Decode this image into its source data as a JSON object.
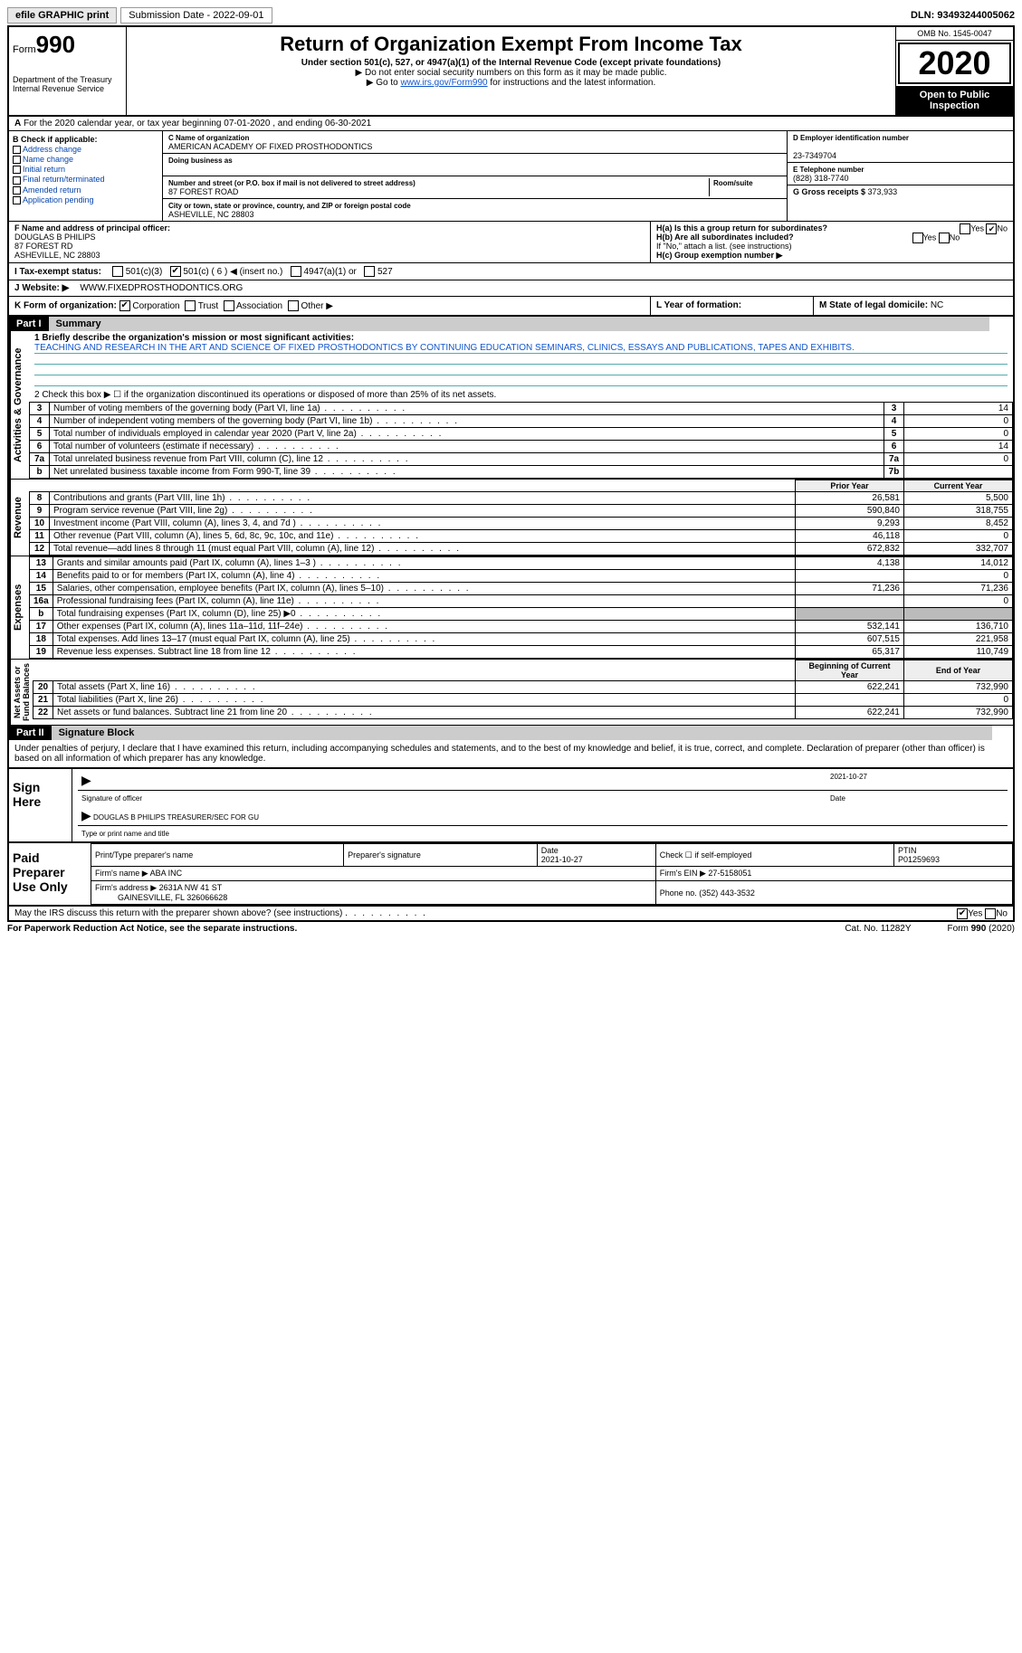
{
  "topbar": {
    "efile": "efile GRAPHIC print",
    "sub_date_label": "Submission Date - 2022-09-01",
    "dln": "DLN: 93493244005062"
  },
  "header": {
    "form_prefix": "Form",
    "form_num": "990",
    "dept": "Department of the Treasury\nInternal Revenue Service",
    "title": "Return of Organization Exempt From Income Tax",
    "subtitle": "Under section 501(c), 527, or 4947(a)(1) of the Internal Revenue Code (except private foundations)",
    "note1": "▶ Do not enter social security numbers on this form as it may be made public.",
    "note2_pre": "▶ Go to ",
    "note2_link": "www.irs.gov/Form990",
    "note2_post": " for instructions and the latest information.",
    "omb": "OMB No. 1545-0047",
    "year": "2020",
    "otp": "Open to Public Inspection"
  },
  "row_a": "For the 2020 calendar year, or tax year beginning 07-01-2020   , and ending 06-30-2021",
  "col_b": {
    "title": "B Check if applicable:",
    "items": [
      "Address change",
      "Name change",
      "Initial return",
      "Final return/terminated",
      "Amended return",
      "Application pending"
    ]
  },
  "col_c": {
    "name_label": "C Name of organization",
    "name": "AMERICAN ACADEMY OF FIXED PROSTHODONTICS",
    "dba_label": "Doing business as",
    "dba": "",
    "addr_label": "Number and street (or P.O. box if mail is not delivered to street address)",
    "room_label": "Room/suite",
    "addr": "87 FOREST ROAD",
    "city_label": "City or town, state or province, country, and ZIP or foreign postal code",
    "city": "ASHEVILLE, NC  28803"
  },
  "col_d": {
    "ein_label": "D Employer identification number",
    "ein": "23-7349704",
    "tel_label": "E Telephone number",
    "tel": "(828) 318-7740",
    "gross_label": "G Gross receipts $ ",
    "gross": "373,933"
  },
  "sec_f": {
    "label": "F  Name and address of principal officer:",
    "name": "DOUGLAS B PHILIPS",
    "addr1": "87 FOREST RD",
    "addr2": "ASHEVILLE, NC  28803"
  },
  "sec_h": {
    "ha_label": "H(a)  Is this a group return for subordinates?",
    "hb_label": "H(b)  Are all subordinates included?",
    "hb_note": "If \"No,\" attach a list. (see instructions)",
    "hc_label": "H(c)  Group exemption number ▶",
    "yes": "Yes",
    "no": "No"
  },
  "status": {
    "i_label": "I  Tax-exempt status:",
    "opts": [
      "501(c)(3)",
      "501(c) ( 6 ) ◀ (insert no.)",
      "4947(a)(1) or",
      "527"
    ],
    "j_label": "J  Website: ▶",
    "j_val": "WWW.FIXEDPROSTHODONTICS.ORG"
  },
  "kl": {
    "k_label": "K Form of organization:",
    "k_opts": [
      "Corporation",
      "Trust",
      "Association",
      "Other ▶"
    ],
    "l_label": "L Year of formation:",
    "l_val": "",
    "m_label": "M State of legal domicile: ",
    "m_val": "NC"
  },
  "part1": {
    "num": "Part I",
    "title": "Summary"
  },
  "summary": {
    "q1_label": "1  Briefly describe the organization's mission or most significant activities:",
    "q1_text": "TEACHING AND RESEARCH IN THE ART AND SCIENCE OF FIXED PROSTHODONTICS BY CONTINUING EDUCATION SEMINARS, CLINICS, ESSAYS AND PUBLICATIONS, TAPES AND EXHIBITS.",
    "q2": "2  Check this box ▶ ☐  if the organization discontinued its operations or disposed of more than 25% of its net assets."
  },
  "gov_rows": [
    {
      "n": "3",
      "label": "Number of voting members of the governing body (Part VI, line 1a)",
      "box": "3",
      "val": "14"
    },
    {
      "n": "4",
      "label": "Number of independent voting members of the governing body (Part VI, line 1b)",
      "box": "4",
      "val": "0"
    },
    {
      "n": "5",
      "label": "Total number of individuals employed in calendar year 2020 (Part V, line 2a)",
      "box": "5",
      "val": "0"
    },
    {
      "n": "6",
      "label": "Total number of volunteers (estimate if necessary)",
      "box": "6",
      "val": "14"
    },
    {
      "n": "7a",
      "label": "Total unrelated business revenue from Part VIII, column (C), line 12",
      "box": "7a",
      "val": "0"
    },
    {
      "n": "b",
      "label": "Net unrelated business taxable income from Form 990-T, line 39",
      "box": "7b",
      "val": ""
    }
  ],
  "fin_hdr": {
    "prior": "Prior Year",
    "current": "Current Year",
    "boy": "Beginning of Current Year",
    "eoy": "End of Year"
  },
  "revenue": [
    {
      "n": "8",
      "label": "Contributions and grants (Part VIII, line 1h)",
      "p": "26,581",
      "c": "5,500"
    },
    {
      "n": "9",
      "label": "Program service revenue (Part VIII, line 2g)",
      "p": "590,840",
      "c": "318,755"
    },
    {
      "n": "10",
      "label": "Investment income (Part VIII, column (A), lines 3, 4, and 7d )",
      "p": "9,293",
      "c": "8,452"
    },
    {
      "n": "11",
      "label": "Other revenue (Part VIII, column (A), lines 5, 6d, 8c, 9c, 10c, and 11e)",
      "p": "46,118",
      "c": "0"
    },
    {
      "n": "12",
      "label": "Total revenue—add lines 8 through 11 (must equal Part VIII, column (A), line 12)",
      "p": "672,832",
      "c": "332,707"
    }
  ],
  "expenses": [
    {
      "n": "13",
      "label": "Grants and similar amounts paid (Part IX, column (A), lines 1–3 )",
      "p": "4,138",
      "c": "14,012"
    },
    {
      "n": "14",
      "label": "Benefits paid to or for members (Part IX, column (A), line 4)",
      "p": "",
      "c": "0"
    },
    {
      "n": "15",
      "label": "Salaries, other compensation, employee benefits (Part IX, column (A), lines 5–10)",
      "p": "71,236",
      "c": "71,236"
    },
    {
      "n": "16a",
      "label": "Professional fundraising fees (Part IX, column (A), line 11e)",
      "p": "",
      "c": "0"
    },
    {
      "n": "b",
      "label": "Total fundraising expenses (Part IX, column (D), line 25) ▶0",
      "p": "GRAY",
      "c": "GRAY"
    },
    {
      "n": "17",
      "label": "Other expenses (Part IX, column (A), lines 11a–11d, 11f–24e)",
      "p": "532,141",
      "c": "136,710"
    },
    {
      "n": "18",
      "label": "Total expenses. Add lines 13–17 (must equal Part IX, column (A), line 25)",
      "p": "607,515",
      "c": "221,958"
    },
    {
      "n": "19",
      "label": "Revenue less expenses. Subtract line 18 from line 12",
      "p": "65,317",
      "c": "110,749"
    }
  ],
  "netassets": [
    {
      "n": "20",
      "label": "Total assets (Part X, line 16)",
      "p": "622,241",
      "c": "732,990"
    },
    {
      "n": "21",
      "label": "Total liabilities (Part X, line 26)",
      "p": "",
      "c": "0"
    },
    {
      "n": "22",
      "label": "Net assets or fund balances. Subtract line 21 from line 20",
      "p": "622,241",
      "c": "732,990"
    }
  ],
  "part2": {
    "num": "Part II",
    "title": "Signature Block"
  },
  "sig_decl": "Under penalties of perjury, I declare that I have examined this return, including accompanying schedules and statements, and to the best of my knowledge and belief, it is true, correct, and complete. Declaration of preparer (other than officer) is based on all information of which preparer has any knowledge.",
  "sign": {
    "here": "Sign Here",
    "date": "2021-10-27",
    "sig_label": "Signature of officer",
    "date_label": "Date",
    "name": "DOUGLAS B PHILIPS  TREASURER/SEC FOR GU",
    "name_label": "Type or print name and title"
  },
  "prep": {
    "title": "Paid Preparer Use Only",
    "h": [
      "Print/Type preparer's name",
      "Preparer's signature",
      "Date",
      "",
      "PTIN"
    ],
    "date": "2021-10-27",
    "self": "Check ☐ if self-employed",
    "ptin": "P01259693",
    "firm_label": "Firm's name   ▶",
    "firm": "ABA INC",
    "ein_label": "Firm's EIN ▶",
    "ein": "27-5158051",
    "addr_label": "Firm's address ▶",
    "addr": "2631A NW 41 ST",
    "addr2": "GAINESVILLE, FL  326066628",
    "phone_label": "Phone no.",
    "phone": "(352) 443-3532"
  },
  "discuss": "May the IRS discuss this return with the preparer shown above? (see instructions)",
  "footer": {
    "left": "For Paperwork Reduction Act Notice, see the separate instructions.",
    "mid": "Cat. No. 11282Y",
    "right": "Form 990 (2020)"
  }
}
